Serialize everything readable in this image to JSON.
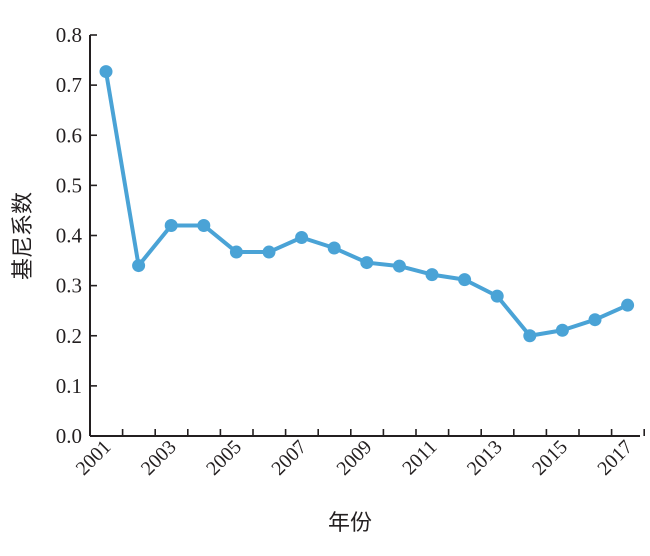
{
  "chart_data": {
    "type": "line",
    "title": "",
    "xlabel": "年份",
    "ylabel": "基尼系数",
    "ylim": [
      0,
      0.8
    ],
    "yticks": [
      "0.0",
      "0.1",
      "0.2",
      "0.3",
      "0.4",
      "0.5",
      "0.6",
      "0.7",
      "0.8"
    ],
    "xtick_labels": [
      "2001",
      "2003",
      "2005",
      "2007",
      "2009",
      "2011",
      "2013",
      "2015",
      "2017"
    ],
    "grid": false,
    "legend": "none",
    "colors": {
      "series": "#4aa3d6",
      "axis": "#231f20"
    },
    "series": [
      {
        "x": [
          2001,
          2002,
          2003,
          2004,
          2005,
          2006,
          2007,
          2008,
          2009,
          2010,
          2011,
          2012,
          2013,
          2014,
          2015,
          2016,
          2017
        ],
        "values": [
          0.727,
          0.34,
          0.42,
          0.42,
          0.367,
          0.367,
          0.396,
          0.375,
          0.346,
          0.339,
          0.322,
          0.312,
          0.279,
          0.2,
          0.211,
          0.232,
          0.261
        ]
      }
    ]
  }
}
